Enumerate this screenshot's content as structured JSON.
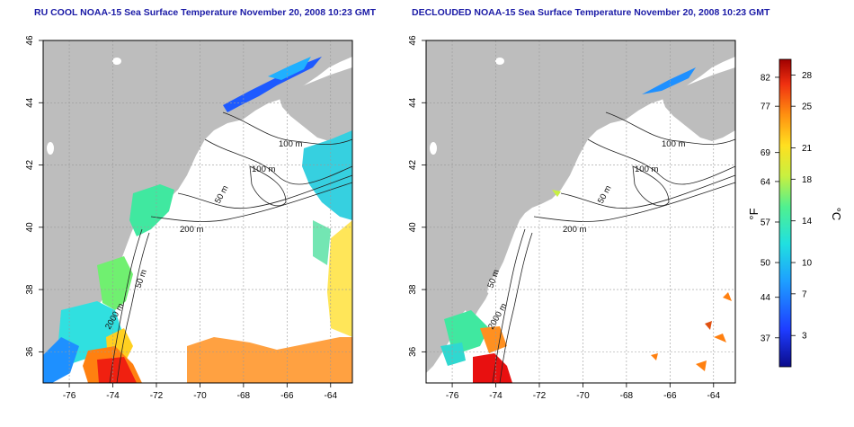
{
  "panels": [
    {
      "title": "RU COOL NOAA-15 Sea Surface Temperature November 20, 2008 10:23 GMT",
      "contour_labels": [
        "100 m",
        "100 m",
        "50 m",
        "200 m",
        "50 m",
        "2000 m"
      ]
    },
    {
      "title": "DECLOUDED NOAA-15 Sea Surface Temperature November 20, 2008 10:23 GMT",
      "contour_labels": [
        "100 m",
        "100 m",
        "50 m",
        "200 m",
        "50 m",
        "2000 m"
      ]
    }
  ],
  "axes": {
    "lat_ticks": [
      "36",
      "38",
      "40",
      "42",
      "44",
      "46"
    ],
    "lon_ticks": [
      "-76",
      "-74",
      "-72",
      "-70",
      "-68",
      "-66",
      "-64"
    ]
  },
  "colorbar": {
    "unit_f": "°F",
    "unit_c": "°C",
    "f_ticks": [
      "82",
      "77",
      "69",
      "64",
      "57",
      "50",
      "44",
      "37"
    ],
    "c_ticks": [
      "28",
      "25",
      "21",
      "18",
      "14",
      "10",
      "7",
      "3"
    ]
  },
  "colors": {
    "land": "#bdbdbd",
    "ocean": "#ffffff",
    "title": "#1a1aa6",
    "grid": "#9a9a9a"
  }
}
